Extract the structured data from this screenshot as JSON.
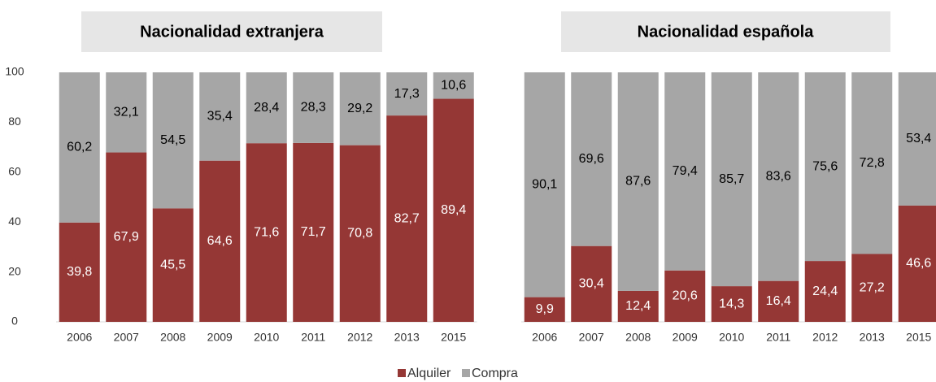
{
  "chart_data": [
    {
      "type": "stacked_bar",
      "title": "Nacionalidad extranjera",
      "categories": [
        "2006",
        "2007",
        "2008",
        "2009",
        "2010",
        "2011",
        "2012",
        "2013",
        "2015"
      ],
      "series": [
        {
          "name": "Alquiler",
          "color": "#953735",
          "values": [
            39.8,
            67.9,
            45.5,
            64.6,
            71.6,
            71.7,
            70.8,
            82.7,
            89.4
          ],
          "value_labels": [
            "39,8",
            "67,9",
            "45,5",
            "64,6",
            "71,6",
            "71,7",
            "70,8",
            "82,7",
            "89,4"
          ]
        },
        {
          "name": "Compra",
          "color": "#a6a6a6",
          "values": [
            60.2,
            32.1,
            54.5,
            35.4,
            28.4,
            28.3,
            29.2,
            17.3,
            10.6
          ],
          "value_labels": [
            "60,2",
            "32,1",
            "54,5",
            "35,4",
            "28,4",
            "28,3",
            "29,2",
            "17,3",
            "10,6"
          ]
        }
      ],
      "ylim": [
        0,
        100
      ],
      "yticks": [
        0,
        20,
        40,
        60,
        80,
        100
      ]
    },
    {
      "type": "stacked_bar",
      "title": "Nacionalidad española",
      "categories": [
        "2006",
        "2007",
        "2008",
        "2009",
        "2010",
        "2011",
        "2012",
        "2013",
        "2015"
      ],
      "series": [
        {
          "color": "#953735",
          "values": [
            9.9,
            30.4,
            12.4,
            20.6,
            14.3,
            16.4,
            24.4,
            27.2,
            46.6
          ],
          "value_labels": [
            "9,9",
            "30,4",
            "12,4",
            "20,6",
            "14,3",
            "16,4",
            "24,4",
            "27,2",
            "46,6"
          ]
        },
        {
          "color": "#a6a6a6",
          "values": [
            90.1,
            69.6,
            87.6,
            79.4,
            85.7,
            83.6,
            75.6,
            72.8,
            53.4
          ],
          "value_labels": [
            "90,1",
            "69,6",
            "87,6",
            "79,4",
            "85,7",
            "83,6",
            "75,6",
            "72,8",
            "53,4"
          ]
        }
      ],
      "ylim": [
        0,
        100
      ]
    }
  ]
}
